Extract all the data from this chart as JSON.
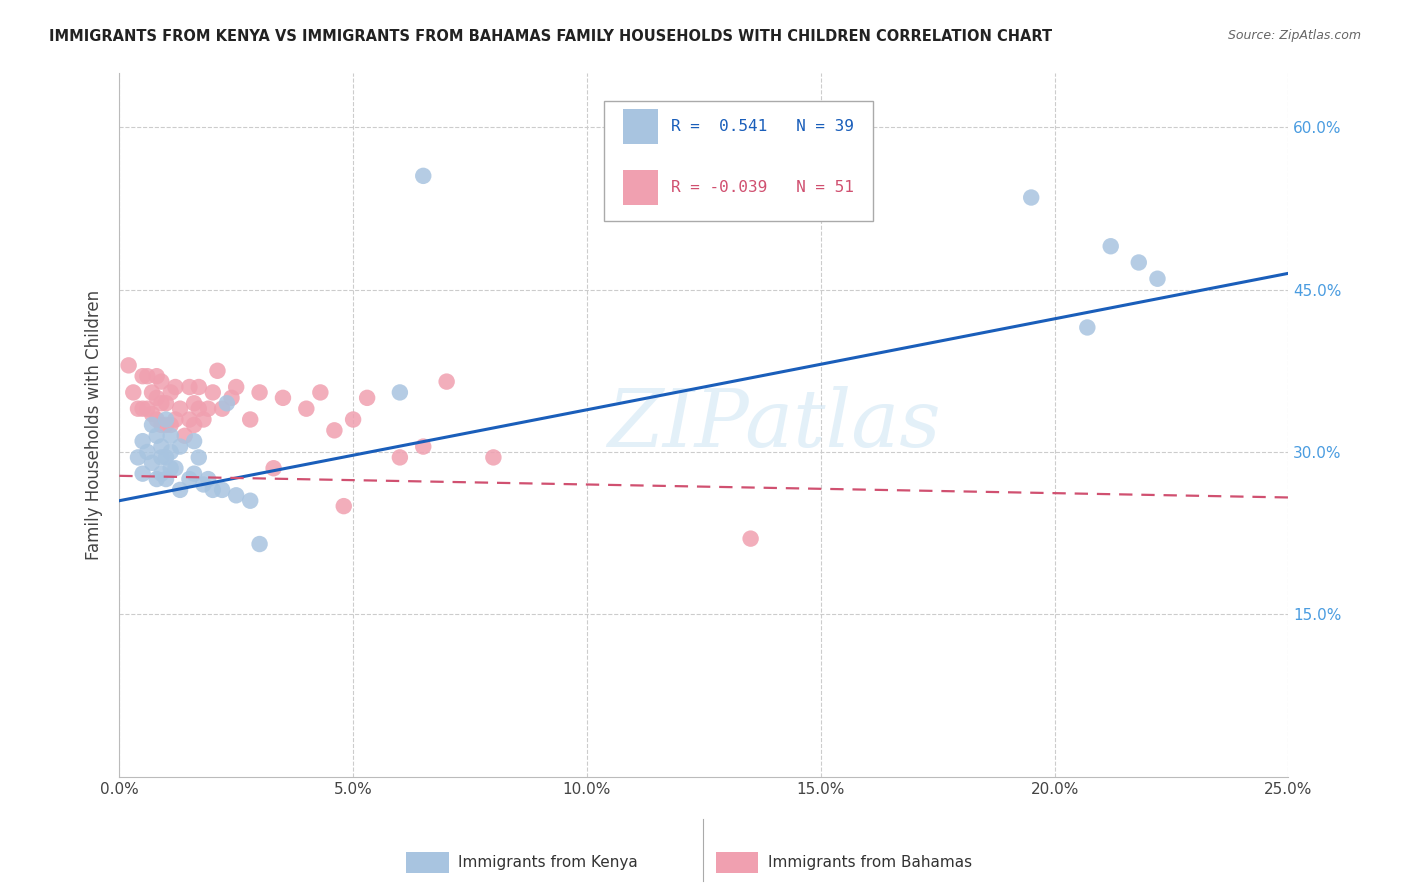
{
  "title": "IMMIGRANTS FROM KENYA VS IMMIGRANTS FROM BAHAMAS FAMILY HOUSEHOLDS WITH CHILDREN CORRELATION CHART",
  "source": "Source: ZipAtlas.com",
  "ylabel": "Family Households with Children",
  "xlim": [
    0.0,
    0.25
  ],
  "ylim": [
    0.0,
    0.65
  ],
  "xtick_vals": [
    0.0,
    0.05,
    0.1,
    0.15,
    0.2,
    0.25
  ],
  "xtick_labels": [
    "0.0%",
    "5.0%",
    "10.0%",
    "15.0%",
    "20.0%",
    "25.0%"
  ],
  "ytick_vals": [
    0.15,
    0.3,
    0.45,
    0.6
  ],
  "ytick_labels": [
    "15.0%",
    "30.0%",
    "45.0%",
    "60.0%"
  ],
  "kenya_R": 0.541,
  "kenya_N": 39,
  "bahamas_R": -0.039,
  "bahamas_N": 51,
  "kenya_color": "#a8c4e0",
  "bahamas_color": "#f0a0b0",
  "kenya_line_color": "#1a5eba",
  "bahamas_line_color": "#d05070",
  "kenya_line_x0": 0.0,
  "kenya_line_y0": 0.255,
  "kenya_line_x1": 0.25,
  "kenya_line_y1": 0.465,
  "bahamas_line_x0": 0.0,
  "bahamas_line_y0": 0.278,
  "bahamas_line_x1": 0.25,
  "bahamas_line_y1": 0.258,
  "kenya_x": [
    0.004,
    0.005,
    0.005,
    0.006,
    0.007,
    0.007,
    0.008,
    0.008,
    0.009,
    0.009,
    0.009,
    0.01,
    0.01,
    0.01,
    0.011,
    0.011,
    0.011,
    0.012,
    0.013,
    0.013,
    0.015,
    0.016,
    0.016,
    0.017,
    0.018,
    0.019,
    0.02,
    0.022,
    0.023,
    0.025,
    0.028,
    0.03,
    0.06,
    0.065,
    0.195,
    0.207,
    0.212,
    0.218,
    0.222
  ],
  "kenya_y": [
    0.295,
    0.31,
    0.28,
    0.3,
    0.29,
    0.325,
    0.275,
    0.315,
    0.28,
    0.295,
    0.305,
    0.33,
    0.275,
    0.295,
    0.315,
    0.285,
    0.3,
    0.285,
    0.265,
    0.305,
    0.275,
    0.31,
    0.28,
    0.295,
    0.27,
    0.275,
    0.265,
    0.265,
    0.345,
    0.26,
    0.255,
    0.215,
    0.355,
    0.555,
    0.535,
    0.415,
    0.49,
    0.475,
    0.46
  ],
  "bahamas_x": [
    0.002,
    0.003,
    0.004,
    0.005,
    0.005,
    0.006,
    0.006,
    0.007,
    0.007,
    0.008,
    0.008,
    0.008,
    0.009,
    0.009,
    0.009,
    0.01,
    0.01,
    0.011,
    0.011,
    0.012,
    0.012,
    0.013,
    0.014,
    0.015,
    0.015,
    0.016,
    0.016,
    0.017,
    0.017,
    0.018,
    0.019,
    0.02,
    0.021,
    0.022,
    0.024,
    0.025,
    0.028,
    0.03,
    0.033,
    0.035,
    0.04,
    0.043,
    0.046,
    0.048,
    0.05,
    0.053,
    0.06,
    0.065,
    0.07,
    0.08,
    0.135
  ],
  "bahamas_y": [
    0.38,
    0.355,
    0.34,
    0.34,
    0.37,
    0.34,
    0.37,
    0.335,
    0.355,
    0.33,
    0.35,
    0.37,
    0.325,
    0.345,
    0.365,
    0.325,
    0.345,
    0.325,
    0.355,
    0.33,
    0.36,
    0.34,
    0.315,
    0.36,
    0.33,
    0.325,
    0.345,
    0.34,
    0.36,
    0.33,
    0.34,
    0.355,
    0.375,
    0.34,
    0.35,
    0.36,
    0.33,
    0.355,
    0.285,
    0.35,
    0.34,
    0.355,
    0.32,
    0.25,
    0.33,
    0.35,
    0.295,
    0.305,
    0.365,
    0.295,
    0.22
  ],
  "watermark": "ZIPatlas",
  "bg_color": "#ffffff",
  "grid_color": "#cccccc",
  "legend_kenya_label": "Immigrants from Kenya",
  "legend_bahamas_label": "Immigrants from Bahamas"
}
